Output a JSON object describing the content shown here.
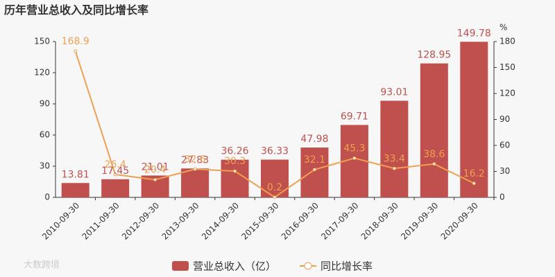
{
  "chart_data": {
    "type": "bar_line",
    "title": "历年营业总收入及同比增长率",
    "categories": [
      "2010-09-30",
      "2011-09-30",
      "2012-09-30",
      "2013-09-30",
      "2014-09-30",
      "2015-09-30",
      "2016-09-30",
      "2017-09-30",
      "2018-09-30",
      "2019-09-30",
      "2020-09-30"
    ],
    "series": [
      {
        "name": "营业总收入（亿）",
        "color": "#c0504d",
        "values": [
          13.81,
          17.45,
          21.01,
          27.83,
          36.26,
          36.33,
          47.98,
          69.71,
          93.01,
          128.95,
          149.78
        ]
      },
      {
        "name": "同比增长率",
        "color": "#f0a050",
        "axis": "y2",
        "values": [
          168.9,
          26.4,
          20.4,
          32.6,
          30.3,
          0.2,
          32.1,
          45.3,
          33.4,
          38.6,
          16.2
        ]
      }
    ],
    "ylim": [
      0,
      150
    ],
    "yticks": [
      0,
      30,
      60,
      90,
      120,
      150
    ],
    "y2lim": [
      0,
      180
    ],
    "y2ticks": [
      0,
      30,
      60,
      90,
      120,
      150,
      180
    ],
    "y2label": "%",
    "watermark": "大数跨境"
  }
}
